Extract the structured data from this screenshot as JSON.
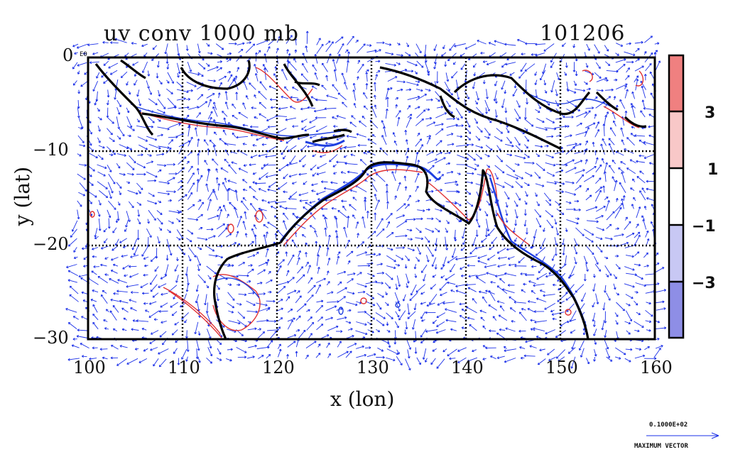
{
  "header": {
    "title": "uv conv 1000 mb",
    "date_code": "101206",
    "exponent_note": "E0"
  },
  "axes": {
    "xlabel": "x (lon)",
    "ylabel": "y (lat)",
    "x_ticks": [
      "100",
      "110",
      "120",
      "130",
      "140",
      "150",
      "160"
    ],
    "y_ticks": [
      "0",
      "−10",
      "−20",
      "−30"
    ]
  },
  "colorbar": {
    "labels": [
      "3",
      "1",
      "−1",
      "−3"
    ],
    "colors": [
      "#f08080",
      "#f8c8c8",
      "#ffffff",
      "#c8c8f4",
      "#8e8ee6"
    ]
  },
  "vector_key": {
    "magnitude": "0.1000E+02",
    "label": "MAXIMUM VECTOR"
  },
  "chart_data": {
    "type": "vector_contour_map",
    "title": "uv conv 1000 mb",
    "subtitle": "101206",
    "xlabel": "x (lon)",
    "ylabel": "y (lat)",
    "xlim": [
      100,
      160
    ],
    "ylim": [
      -30,
      0
    ],
    "grid": true,
    "contour_levels": [
      -3,
      -1,
      1,
      3
    ],
    "contour_colors": {
      "positive": "#e03030",
      "negative": "#2040e0"
    },
    "vector_color": "#1a2fe8",
    "coastline_color": "#000000"
  }
}
